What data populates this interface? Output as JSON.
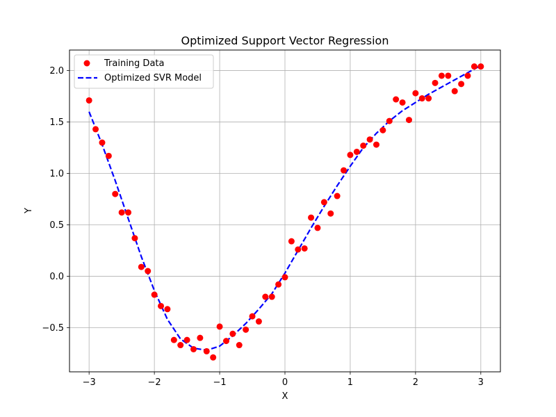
{
  "chart_data": {
    "type": "scatter",
    "title": "Optimized Support Vector Regression",
    "xlabel": "X",
    "ylabel": "Y",
    "xlim": [
      -3.3,
      3.3
    ],
    "ylim": [
      -0.93,
      2.2
    ],
    "xticks": [
      -3,
      -2,
      -1,
      0,
      1,
      2,
      3
    ],
    "xtick_labels": [
      "−3",
      "−2",
      "−1",
      "0",
      "1",
      "2",
      "3"
    ],
    "yticks": [
      -0.5,
      0.0,
      0.5,
      1.0,
      1.5,
      2.0
    ],
    "ytick_labels": [
      "−0.5",
      "0.0",
      "0.5",
      "1.0",
      "1.5",
      "2.0"
    ],
    "grid": true,
    "legend_position": "top-left",
    "series": [
      {
        "name": "Training Data",
        "kind": "scatter",
        "color": "#ff0000",
        "x": [
          -3.0,
          -2.9,
          -2.8,
          -2.7,
          -2.6,
          -2.5,
          -2.4,
          -2.3,
          -2.2,
          -2.1,
          -2.0,
          -1.9,
          -1.8,
          -1.7,
          -1.6,
          -1.5,
          -1.4,
          -1.3,
          -1.2,
          -1.1,
          -1.0,
          -0.9,
          -0.8,
          -0.7,
          -0.6,
          -0.5,
          -0.4,
          -0.3,
          -0.2,
          -0.1,
          0.0,
          0.1,
          0.2,
          0.3,
          0.4,
          0.5,
          0.6,
          0.7,
          0.8,
          0.9,
          1.0,
          1.1,
          1.2,
          1.3,
          1.4,
          1.5,
          1.6,
          1.7,
          1.8,
          1.9,
          2.0,
          2.1,
          2.2,
          2.3,
          2.4,
          2.5,
          2.6,
          2.7,
          2.8,
          2.9,
          3.0
        ],
        "y": [
          1.71,
          1.43,
          1.3,
          1.17,
          0.8,
          0.62,
          0.62,
          0.37,
          0.09,
          0.05,
          -0.18,
          -0.29,
          -0.32,
          -0.62,
          -0.67,
          -0.62,
          -0.71,
          -0.6,
          -0.73,
          -0.79,
          -0.49,
          -0.63,
          -0.56,
          -0.67,
          -0.52,
          -0.39,
          -0.44,
          -0.2,
          -0.2,
          -0.08,
          -0.01,
          0.34,
          0.26,
          0.27,
          0.57,
          0.47,
          0.72,
          0.61,
          0.78,
          1.03,
          1.18,
          1.21,
          1.27,
          1.33,
          1.28,
          1.42,
          1.51,
          1.72,
          1.69,
          1.52,
          1.78,
          1.73,
          1.73,
          1.88,
          1.95,
          1.95,
          1.8,
          1.87,
          1.95,
          2.04,
          2.04
        ]
      },
      {
        "name": "Optimized SVR Model",
        "kind": "line",
        "style": "dashed",
        "color": "#0000ff",
        "x": [
          -3.0,
          -2.8,
          -2.6,
          -2.4,
          -2.2,
          -2.0,
          -1.8,
          -1.6,
          -1.4,
          -1.2,
          -1.0,
          -0.8,
          -0.6,
          -0.4,
          -0.2,
          0.0,
          0.2,
          0.4,
          0.6,
          0.8,
          1.0,
          1.2,
          1.4,
          1.6,
          1.8,
          2.0,
          2.2,
          2.4,
          2.6,
          2.8,
          3.0
        ],
        "y": [
          1.6,
          1.28,
          0.93,
          0.56,
          0.19,
          -0.14,
          -0.42,
          -0.61,
          -0.7,
          -0.72,
          -0.68,
          -0.58,
          -0.46,
          -0.32,
          -0.17,
          0.03,
          0.25,
          0.47,
          0.68,
          0.88,
          1.07,
          1.25,
          1.39,
          1.51,
          1.61,
          1.69,
          1.77,
          1.84,
          1.91,
          1.98,
          2.05
        ]
      }
    ]
  }
}
